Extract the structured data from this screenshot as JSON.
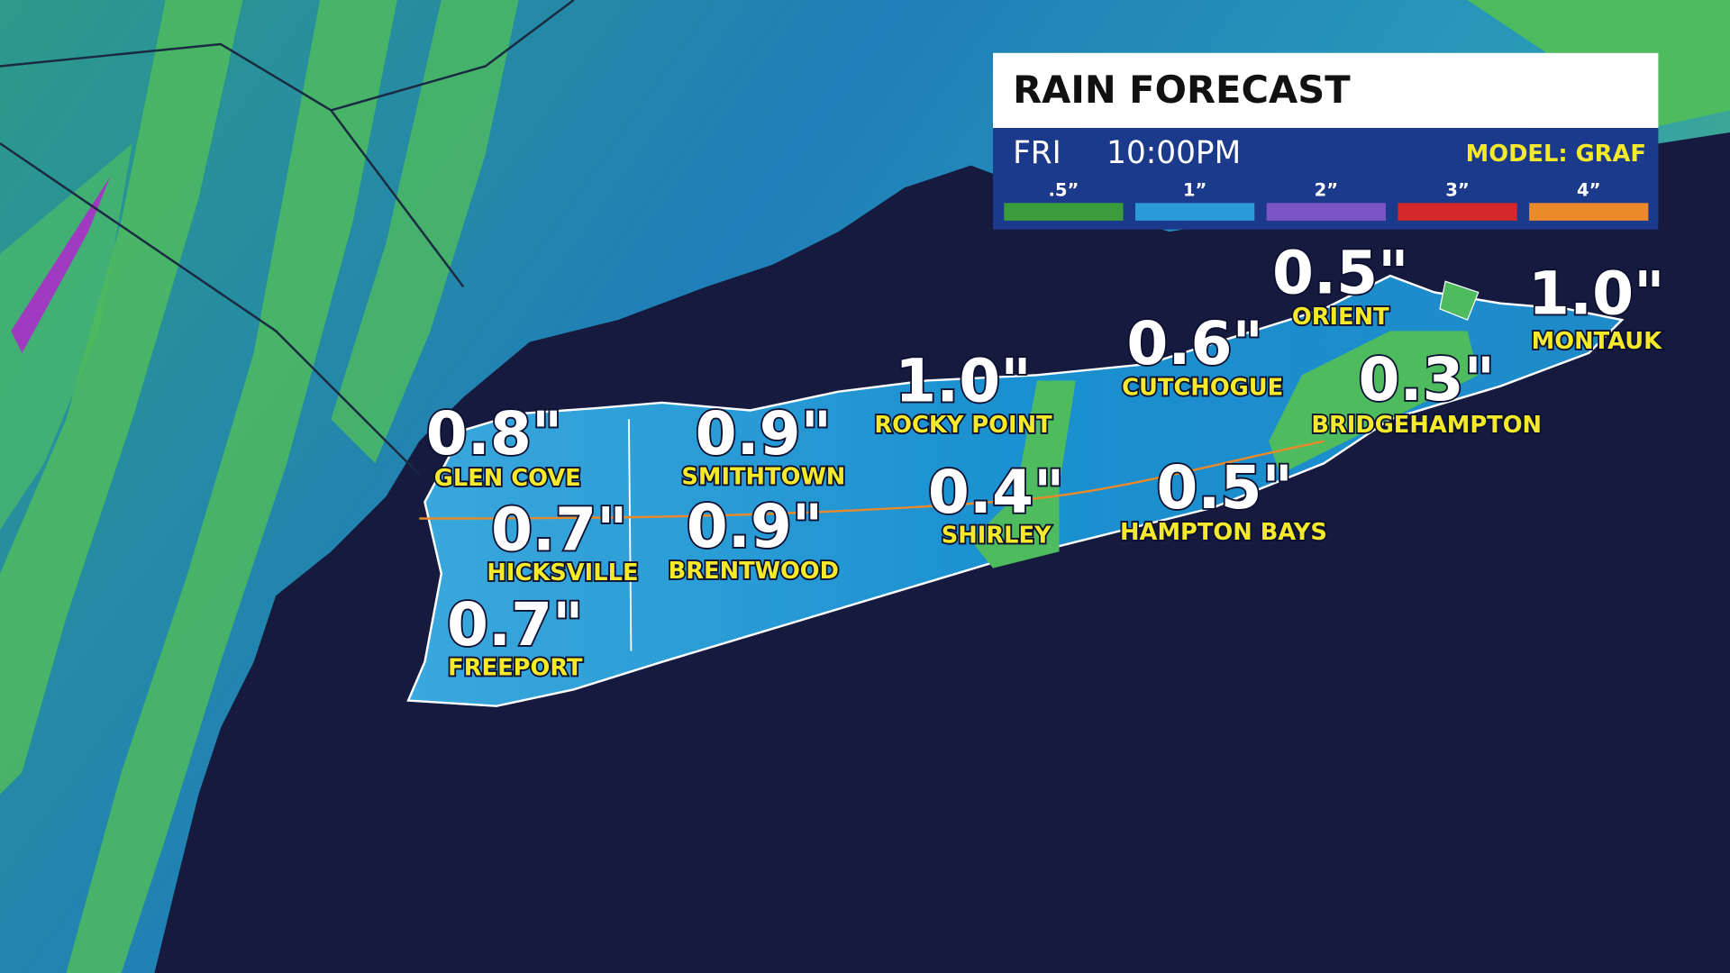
{
  "header": {
    "title": "RAIN FORECAST",
    "day": "FRI",
    "time": "10:00PM",
    "model": "MODEL: GRAF"
  },
  "legend": [
    {
      "label": ".5”",
      "color": "#3a9c3a"
    },
    {
      "label": "1”",
      "color": "#2b9ad8"
    },
    {
      "label": "2”",
      "color": "#7b55c6"
    },
    {
      "label": "3”",
      "color": "#d4282a"
    },
    {
      "label": "4”",
      "color": "#ea8a2a"
    }
  ],
  "locations": [
    {
      "amount": "0.8\"",
      "name": "GLEN COVE"
    },
    {
      "amount": "0.7\"",
      "name": "HICKSVILLE"
    },
    {
      "amount": "0.7\"",
      "name": "FREEPORT"
    },
    {
      "amount": "0.9\"",
      "name": "SMITHTOWN"
    },
    {
      "amount": "0.9\"",
      "name": "BRENTWOOD"
    },
    {
      "amount": "1.0\"",
      "name": "ROCKY POINT"
    },
    {
      "amount": "0.4\"",
      "name": "SHIRLEY"
    },
    {
      "amount": "0.6\"",
      "name": "CUTCHOGUE"
    },
    {
      "amount": "0.5\"",
      "name": "HAMPTON BAYS"
    },
    {
      "amount": "0.5\"",
      "name": "ORIENT"
    },
    {
      "amount": "0.3\"",
      "name": "BRIDGEHAMPTON"
    },
    {
      "amount": "1.0\"",
      "name": "MONTAUK"
    }
  ]
}
